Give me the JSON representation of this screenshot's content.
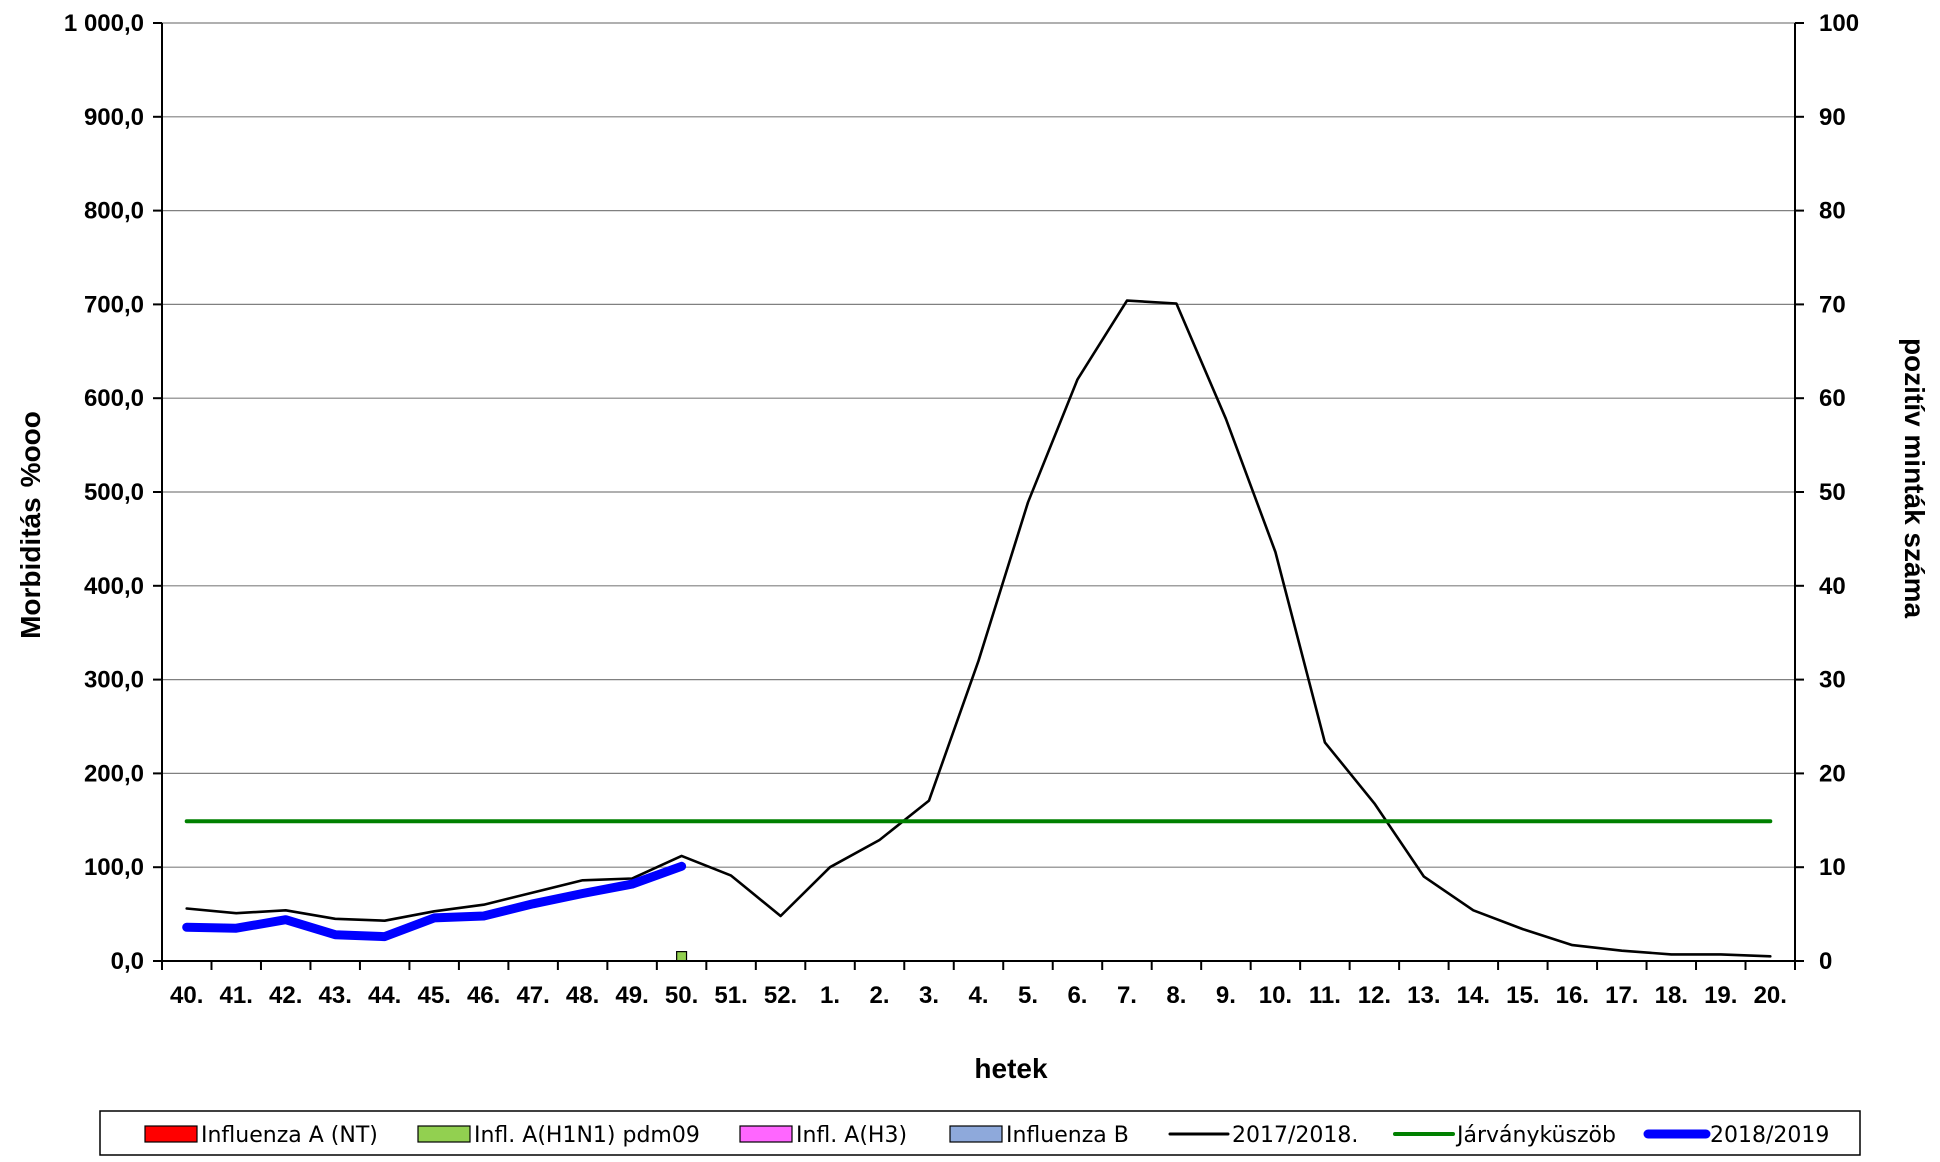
{
  "chart_data": {
    "type": "line",
    "xlabel": "hetek",
    "ylabel_main": "Morbiditás",
    "ylabel_unit": "%ooo",
    "y2label": "pozitív minták száma",
    "ylim": [
      0,
      1000
    ],
    "y2lim": [
      0,
      100
    ],
    "y_ticks": [
      "0,0",
      "100,0",
      "200,0",
      "300,0",
      "400,0",
      "500,0",
      "600,0",
      "700,0",
      "800,0",
      "900,0",
      "1 000,0"
    ],
    "y2_ticks": [
      "0",
      "10",
      "20",
      "30",
      "40",
      "50",
      "60",
      "70",
      "80",
      "90",
      "100"
    ],
    "grid": true,
    "legend_position": "bottom",
    "categories": [
      "40.",
      "41.",
      "42.",
      "43.",
      "44.",
      "45.",
      "46.",
      "47.",
      "48.",
      "49.",
      "50.",
      "51.",
      "52.",
      "1.",
      "2.",
      "3.",
      "4.",
      "5.",
      "6.",
      "7.",
      "8.",
      "9.",
      "10.",
      "11.",
      "12.",
      "13.",
      "14.",
      "15.",
      "16.",
      "17.",
      "18.",
      "19.",
      "20."
    ],
    "line_series": [
      {
        "name": "2017/2018.",
        "color": "#000000",
        "values": [
          56,
          51,
          54,
          45,
          43,
          53,
          60,
          73,
          86,
          88,
          112,
          91,
          48,
          100,
          129,
          171,
          320,
          489,
          620,
          704,
          701,
          578,
          436,
          233,
          168,
          90,
          54,
          34,
          17,
          11,
          7,
          7,
          5
        ]
      },
      {
        "name": "Járványküszöb",
        "color": "#008000",
        "values": [
          149,
          149,
          149,
          149,
          149,
          149,
          149,
          149,
          149,
          149,
          149,
          149,
          149,
          149,
          149,
          149,
          149,
          149,
          149,
          149,
          149,
          149,
          149,
          149,
          149,
          149,
          149,
          149,
          149,
          149,
          149,
          149,
          149
        ]
      },
      {
        "name": "2018/2019",
        "color": "#0000ff",
        "values": [
          36,
          35,
          44,
          28,
          26,
          46,
          48,
          61,
          72,
          82,
          101,
          null,
          null,
          null,
          null,
          null,
          null,
          null,
          null,
          null,
          null,
          null,
          null,
          null,
          null,
          null,
          null,
          null,
          null,
          null,
          null,
          null,
          null
        ]
      }
    ],
    "bar_series": [
      {
        "name": "Influenza A (NT)",
        "color": "#ff0000",
        "values": [
          0,
          0,
          0,
          0,
          0,
          0,
          0,
          0,
          0,
          0,
          0,
          0,
          0,
          0,
          0,
          0,
          0,
          0,
          0,
          0,
          0,
          0,
          0,
          0,
          0,
          0,
          0,
          0,
          0,
          0,
          0,
          0,
          0
        ]
      },
      {
        "name": "Infl. A(H1N1) pdm09",
        "color": "#92d050",
        "values": [
          0,
          0,
          0,
          0,
          0,
          0,
          0,
          0,
          0,
          0,
          1,
          0,
          0,
          0,
          0,
          0,
          0,
          0,
          0,
          0,
          0,
          0,
          0,
          0,
          0,
          0,
          0,
          0,
          0,
          0,
          0,
          0,
          0
        ]
      },
      {
        "name": "Infl. A(H3)",
        "color": "#ff66ff",
        "values": [
          0,
          0,
          0,
          0,
          0,
          0,
          0,
          0,
          0,
          0,
          0,
          0,
          0,
          0,
          0,
          0,
          0,
          0,
          0,
          0,
          0,
          0,
          0,
          0,
          0,
          0,
          0,
          0,
          0,
          0,
          0,
          0,
          0
        ]
      },
      {
        "name": "Influenza B",
        "color": "#8ea9db",
        "values": [
          0,
          0,
          0,
          0,
          0,
          0,
          0,
          0,
          0,
          0,
          0,
          0,
          0,
          0,
          0,
          0,
          0,
          0,
          0,
          0,
          0,
          0,
          0,
          0,
          0,
          0,
          0,
          0,
          0,
          0,
          0,
          0,
          0
        ]
      }
    ],
    "legend": [
      {
        "label": "Influenza A (NT)",
        "kind": "box",
        "color": "#ff0000"
      },
      {
        "label": "Infl. A(H1N1) pdm09",
        "kind": "box",
        "color": "#92d050"
      },
      {
        "label": "Infl. A(H3)",
        "kind": "box",
        "color": "#ff66ff"
      },
      {
        "label": "Influenza B",
        "kind": "box",
        "color": "#8ea9db"
      },
      {
        "label": "2017/2018.",
        "kind": "line",
        "color": "#000000"
      },
      {
        "label": "Járványküszöb",
        "kind": "line",
        "color": "#008000"
      },
      {
        "label": "2018/2019",
        "kind": "line",
        "color": "#0000ff"
      }
    ]
  }
}
